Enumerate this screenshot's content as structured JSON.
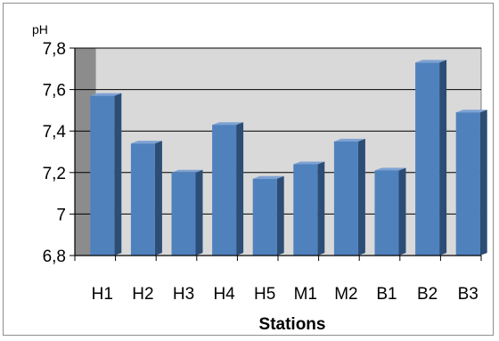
{
  "chart_data": {
    "type": "bar",
    "title": "",
    "xlabel": "Stations",
    "ylabel": "pH",
    "categories": [
      "H1",
      "H2",
      "H3",
      "H4",
      "H5",
      "M1",
      "M2",
      "B1",
      "B2",
      "B3"
    ],
    "values": [
      7.57,
      7.34,
      7.2,
      7.43,
      7.17,
      7.24,
      7.35,
      7.21,
      7.73,
      7.49
    ],
    "ylim": [
      6.8,
      7.8
    ],
    "yticks": [
      "6,8",
      "7",
      "7,2",
      "7,4",
      "7,6",
      "7,8"
    ],
    "grid": true,
    "legend": "none",
    "colors": {
      "bar_front": "#4f81bd",
      "bar_side": "#2c4d75",
      "bar_top": "#7da2d3",
      "plot_back": "#d9d9d9",
      "plot_left_wall": "#8c8c8c",
      "gridline": "#000000"
    }
  }
}
